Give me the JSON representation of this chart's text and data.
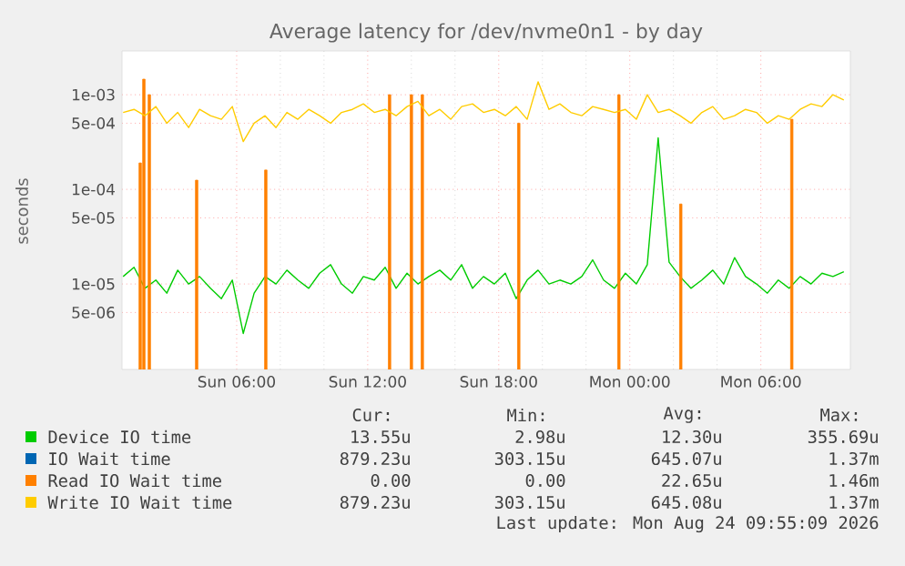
{
  "chart_data": {
    "type": "line",
    "title": "Average latency for /dev/nvme0n1 - by day",
    "ylabel": "seconds",
    "log": "y",
    "grid": true,
    "legend": "bottom",
    "x": [
      "2026-08-23T00:48",
      "2026-08-23T01:18",
      "2026-08-23T01:48",
      "2026-08-23T02:18",
      "2026-08-23T02:48",
      "2026-08-23T03:18",
      "2026-08-23T03:48",
      "2026-08-23T04:18",
      "2026-08-23T04:48",
      "2026-08-23T05:18",
      "2026-08-23T05:48",
      "2026-08-23T06:18",
      "2026-08-23T06:48",
      "2026-08-23T07:18",
      "2026-08-23T07:48",
      "2026-08-23T08:18",
      "2026-08-23T08:48",
      "2026-08-23T09:18",
      "2026-08-23T09:48",
      "2026-08-23T10:18",
      "2026-08-23T10:48",
      "2026-08-23T11:18",
      "2026-08-23T11:48",
      "2026-08-23T12:18",
      "2026-08-23T12:48",
      "2026-08-23T13:18",
      "2026-08-23T13:48",
      "2026-08-23T14:18",
      "2026-08-23T14:48",
      "2026-08-23T15:18",
      "2026-08-23T15:48",
      "2026-08-23T16:18",
      "2026-08-23T16:48",
      "2026-08-23T17:18",
      "2026-08-23T17:48",
      "2026-08-23T18:18",
      "2026-08-23T18:48",
      "2026-08-23T19:18",
      "2026-08-23T19:48",
      "2026-08-23T20:18",
      "2026-08-23T20:48",
      "2026-08-23T21:18",
      "2026-08-23T21:48",
      "2026-08-23T22:18",
      "2026-08-23T22:48",
      "2026-08-23T23:18",
      "2026-08-23T23:48",
      "2026-08-24T00:18",
      "2026-08-24T00:48",
      "2026-08-24T01:18",
      "2026-08-24T01:48",
      "2026-08-24T02:18",
      "2026-08-24T02:48",
      "2026-08-24T03:18",
      "2026-08-24T03:48",
      "2026-08-24T04:18",
      "2026-08-24T04:48",
      "2026-08-24T05:18",
      "2026-08-24T05:48",
      "2026-08-24T06:18",
      "2026-08-24T06:48",
      "2026-08-24T07:18",
      "2026-08-24T07:48",
      "2026-08-24T08:18",
      "2026-08-24T08:48",
      "2026-08-24T09:18",
      "2026-08-24T09:48"
    ],
    "xlim": [
      "2026-08-23T00:45",
      "2026-08-24T10:06"
    ],
    "xticks": [
      {
        "value": "2026-08-23T06:00",
        "label": "Sun 06:00"
      },
      {
        "value": "2026-08-23T12:00",
        "label": "Sun 12:00"
      },
      {
        "value": "2026-08-23T18:00",
        "label": "Sun 18:00"
      },
      {
        "value": "2026-08-24T00:00",
        "label": "Mon 00:00"
      },
      {
        "value": "2026-08-24T06:00",
        "label": "Mon 06:00"
      }
    ],
    "ylim": [
      1.25e-06,
      0.0029
    ],
    "yticks": [
      {
        "value": 5e-06,
        "label": "5e-06"
      },
      {
        "value": 1e-05,
        "label": "1e-05"
      },
      {
        "value": 5e-05,
        "label": "5e-05"
      },
      {
        "value": 0.0001,
        "label": "1e-04"
      },
      {
        "value": 0.0005,
        "label": "5e-04"
      },
      {
        "value": 0.001,
        "label": "1e-03"
      }
    ],
    "series": [
      {
        "name": "Device IO time",
        "color": "#00cc00",
        "values": [
          1.2e-05,
          1.5e-05,
          9e-06,
          1.1e-05,
          8e-06,
          1.4e-05,
          1e-05,
          1.2e-05,
          9e-06,
          7e-06,
          1.1e-05,
          3e-06,
          8e-06,
          1.2e-05,
          1e-05,
          1.4e-05,
          1.1e-05,
          9e-06,
          1.3e-05,
          1.6e-05,
          1e-05,
          8e-06,
          1.2e-05,
          1.1e-05,
          1.5e-05,
          9e-06,
          1.3e-05,
          1e-05,
          1.2e-05,
          1.4e-05,
          1.1e-05,
          1.6e-05,
          9e-06,
          1.2e-05,
          1e-05,
          1.3e-05,
          7e-06,
          1.1e-05,
          1.4e-05,
          1e-05,
          1.1e-05,
          1e-05,
          1.2e-05,
          1.8e-05,
          1.1e-05,
          9e-06,
          1.3e-05,
          1e-05,
          1.6e-05,
          0.00035,
          1.7e-05,
          1.2e-05,
          9e-06,
          1.1e-05,
          1.4e-05,
          1e-05,
          1.9e-05,
          1.2e-05,
          1e-05,
          8e-06,
          1.1e-05,
          9e-06,
          1.2e-05,
          1e-05,
          1.3e-05,
          1.2e-05,
          1.35e-05
        ]
      },
      {
        "name": "IO Wait time",
        "color": "#0066b3",
        "values": [
          null,
          null,
          null,
          null,
          null,
          null,
          null,
          null,
          null,
          null,
          null,
          null,
          null,
          null,
          null,
          null,
          null,
          null,
          null,
          null,
          null,
          null,
          null,
          null,
          null,
          null,
          null,
          null,
          null,
          null,
          null,
          null,
          null,
          null,
          null,
          null,
          null,
          null,
          null,
          null,
          null,
          null,
          null,
          null,
          null,
          null,
          null,
          null,
          null,
          null,
          null,
          null,
          null,
          null,
          null,
          null,
          null,
          null,
          null,
          null,
          null,
          null,
          null,
          null,
          null,
          null,
          null
        ]
      },
      {
        "name": "Read IO Wait time",
        "color": "#ff8000",
        "type": "bar",
        "x": [
          "2026-08-23T01:35",
          "2026-08-23T01:45",
          "2026-08-23T02:00",
          "2026-08-23T04:10",
          "2026-08-23T07:20",
          "2026-08-23T13:00",
          "2026-08-23T14:00",
          "2026-08-23T14:30",
          "2026-08-23T18:55",
          "2026-08-23T23:30",
          "2026-08-24T02:20",
          "2026-08-24T07:25"
        ],
        "values": [
          0.00019,
          0.00146,
          0.001,
          0.000125,
          0.00016,
          0.001,
          0.001,
          0.001,
          0.0005,
          0.001,
          7e-05,
          0.00055
        ]
      },
      {
        "name": "Write IO Wait time",
        "color": "#ffcc00",
        "values": [
          0.00065,
          0.0007,
          0.0006,
          0.00075,
          0.0005,
          0.00065,
          0.00045,
          0.0007,
          0.0006,
          0.00055,
          0.00075,
          0.00032,
          0.0005,
          0.0006,
          0.00045,
          0.00065,
          0.00055,
          0.0007,
          0.0006,
          0.0005,
          0.00065,
          0.0007,
          0.0008,
          0.00065,
          0.0007,
          0.0006,
          0.00075,
          0.00085,
          0.0006,
          0.0007,
          0.00055,
          0.00075,
          0.0008,
          0.00065,
          0.0007,
          0.0006,
          0.00075,
          0.00055,
          0.00137,
          0.0007,
          0.0008,
          0.00065,
          0.0006,
          0.00075,
          0.0007,
          0.00065,
          0.0007,
          0.00055,
          0.001,
          0.00065,
          0.0007,
          0.0006,
          0.0005,
          0.00065,
          0.00075,
          0.00055,
          0.0006,
          0.0007,
          0.00065,
          0.0005,
          0.0006,
          0.00055,
          0.0007,
          0.0008,
          0.00075,
          0.001,
          0.00088
        ]
      }
    ],
    "annotations": [
      "Cur:",
      "Min:",
      "Avg:",
      "Max:",
      "13.55u",
      "2.98u",
      "12.30u",
      "355.69u",
      "879.23u",
      "303.15u",
      "645.07u",
      "1.37m",
      "0.00",
      "0.00",
      "22.65u",
      "1.46m",
      "879.23u",
      "303.15u",
      "645.08u",
      "1.37m",
      "Last update: Mon Aug 24 09:55:09 2026"
    ]
  }
}
